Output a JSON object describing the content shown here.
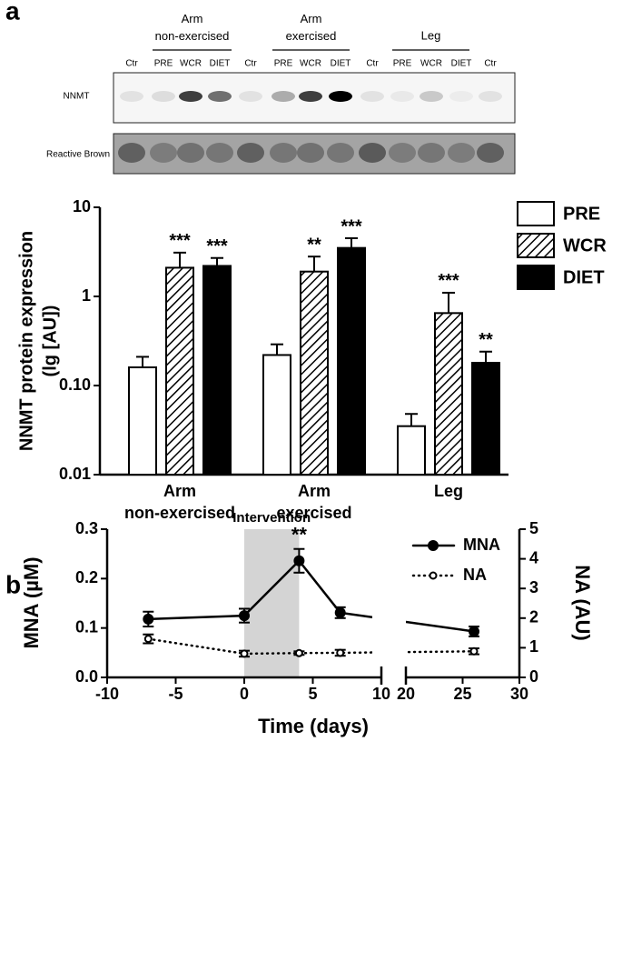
{
  "blot": {
    "groups": [
      "Arm non-exercised",
      "Arm exercised",
      "Leg"
    ],
    "lanes": [
      "Ctr",
      "PRE",
      "WCR",
      "DIET",
      "Ctr",
      "PRE",
      "WCR",
      "DIET",
      "Ctr",
      "PRE",
      "WCR",
      "DIET",
      "Ctr"
    ],
    "rows": [
      "NNMT",
      "Reactive Brown"
    ]
  },
  "chart_data": [
    {
      "type": "bar",
      "panel_label": "a",
      "log_scale": true,
      "ylabel": [
        "NNMT protein expression",
        "(lg [AU])"
      ],
      "categories": [
        "Arm non-exercised",
        "Arm exercised",
        "Leg"
      ],
      "ylim": [
        0.01,
        10
      ],
      "yticks": [
        0.01,
        {
          "value": 0.1,
          "label": "0.10"
        },
        1,
        10
      ],
      "legend": "right",
      "series": [
        {
          "name": "PRE",
          "color": "#ffffff",
          "values": [
            0.16,
            0.22,
            0.035
          ],
          "errors": [
            0.05,
            0.07,
            0.013
          ]
        },
        {
          "name": "WCR",
          "color": "#ffffff",
          "pattern": "hatch",
          "values": [
            2.1,
            1.9,
            0.65
          ],
          "errors": [
            1.0,
            0.9,
            0.45
          ],
          "significance": [
            "***",
            "**",
            "***"
          ]
        },
        {
          "name": "DIET",
          "color": "#000000",
          "values": [
            2.2,
            3.5,
            0.18
          ],
          "errors": [
            0.5,
            1.0,
            0.06
          ],
          "significance": [
            "***",
            "***",
            "**"
          ]
        }
      ]
    },
    {
      "type": "line",
      "panel_label": "b",
      "xlabel": "Time (days)",
      "ylabel": "MNA (µM)",
      "y2label": "NA (AU)",
      "xlim": [
        -10,
        30
      ],
      "xbreak": [
        10,
        20
      ],
      "xticks": [
        -10,
        -5,
        0,
        5,
        10,
        20,
        25,
        30
      ],
      "ylim": [
        0,
        0.3
      ],
      "yticks": [
        {
          "value": 0,
          "label": "0.0"
        },
        0.1,
        0.2,
        0.3
      ],
      "y2lim": [
        0,
        5
      ],
      "y2ticks": [
        0,
        1,
        2,
        3,
        4,
        5
      ],
      "shade": {
        "x": [
          0,
          4
        ],
        "label": "Intervention"
      },
      "legend": "upper right",
      "series": [
        {
          "name": "MNA",
          "color": "#000000",
          "style": "solid",
          "marker": "filled",
          "x": [
            -7,
            0,
            4,
            7,
            26
          ],
          "values": [
            0.118,
            0.125,
            0.236,
            0.131,
            0.093
          ],
          "errors": [
            0.015,
            0.014,
            0.024,
            0.011,
            0.01
          ],
          "significance": [
            null,
            null,
            "**",
            null,
            null
          ]
        },
        {
          "name": "NA",
          "axis": "y2",
          "color": "#000000",
          "style": "dotted",
          "marker": "open",
          "x": [
            -7,
            0,
            4,
            7,
            26
          ],
          "values": [
            1.3,
            0.8,
            0.82,
            0.83,
            0.88
          ],
          "errors": [
            0.15,
            0.1,
            0.06,
            0.1,
            0.1
          ]
        }
      ]
    }
  ]
}
